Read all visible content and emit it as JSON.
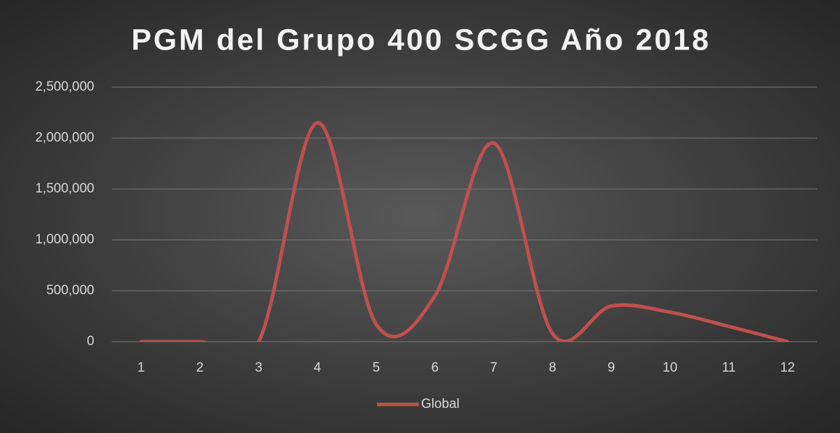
{
  "chart_data": {
    "type": "line",
    "title": "PGM del Grupo 400 SCGG Año 2018",
    "categories": [
      "1",
      "2",
      "3",
      "4",
      "5",
      "6",
      "7",
      "8",
      "9",
      "10",
      "11",
      "12"
    ],
    "series": [
      {
        "name": "Global",
        "color": "#c0504d",
        "values": [
          0,
          0,
          0,
          2150000,
          170000,
          450000,
          1950000,
          80000,
          350000,
          290000,
          150000,
          0
        ]
      }
    ],
    "ylim": [
      0,
      2500000
    ],
    "yticks": [
      0,
      {
        "value": 500000,
        "label": "500,000"
      },
      {
        "value": 1000000,
        "label": "1,000,000"
      },
      {
        "value": 1500000,
        "label": "1,500,000"
      },
      {
        "value": 2000000,
        "label": "2,000,000"
      },
      {
        "value": 2500000,
        "label": "2,500,000"
      }
    ],
    "grid": true,
    "smooth": true,
    "legend": "bottom"
  }
}
